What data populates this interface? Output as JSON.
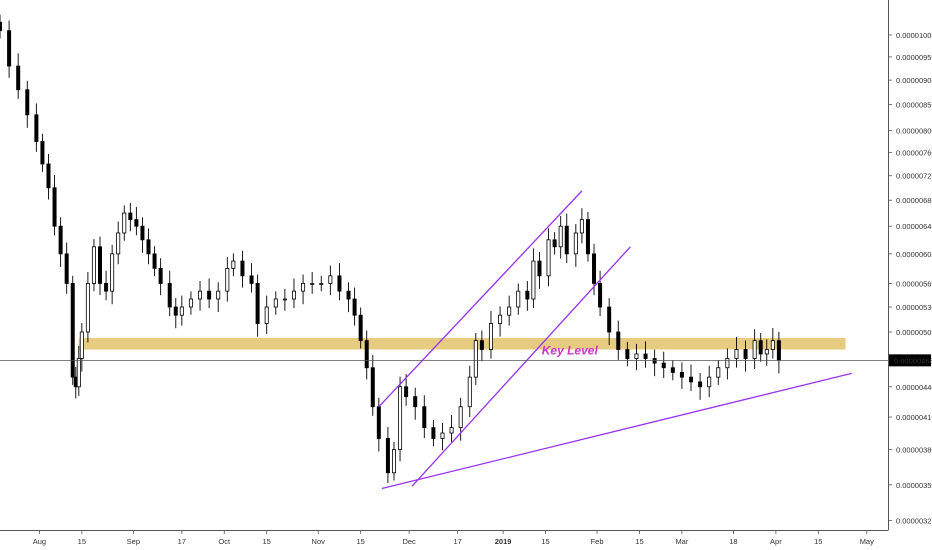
{
  "chart_data": {
    "type": "candlestick",
    "y_scale": "log",
    "ylim": [
      3.15e-06,
      1.085e-05
    ],
    "y_ticks": [
      "0.00001000",
      "0.00000950",
      "0.00000900",
      "0.00000850",
      "0.00000800",
      "0.00000760",
      "0.00000720",
      "0.00000680",
      "0.00000640",
      "0.00000600",
      "0.00000560",
      "0.00000530",
      "0.00000500",
      "0.00000440",
      "0.00000410",
      "0.00000380",
      "0.00000350",
      "0.00000322"
    ],
    "x_range": [
      "2018-07-19",
      "2019-05-08"
    ],
    "x_ticks": [
      {
        "label": "Aug",
        "date": "2018-08-01"
      },
      {
        "label": "15",
        "date": "2018-08-15"
      },
      {
        "label": "Sep",
        "date": "2018-09-01"
      },
      {
        "label": "17",
        "date": "2018-09-17"
      },
      {
        "label": "Oct",
        "date": "2018-10-01"
      },
      {
        "label": "15",
        "date": "2018-10-15"
      },
      {
        "label": "Nov",
        "date": "2018-11-01"
      },
      {
        "label": "15",
        "date": "2018-11-15"
      },
      {
        "label": "Dec",
        "date": "2018-12-01"
      },
      {
        "label": "17",
        "date": "2018-12-17"
      },
      {
        "label": "2019",
        "date": "2019-01-01",
        "bold": true
      },
      {
        "label": "15",
        "date": "2019-01-15"
      },
      {
        "label": "Feb",
        "date": "2019-02-01"
      },
      {
        "label": "15",
        "date": "2019-02-15"
      },
      {
        "label": "Mar",
        "date": "2019-03-01"
      },
      {
        "label": "18",
        "date": "2019-03-18"
      },
      {
        "label": "Apr",
        "date": "2019-04-01"
      },
      {
        "label": "15",
        "date": "2019-04-15"
      },
      {
        "label": "May",
        "date": "2019-05-01"
      }
    ],
    "current_price": {
      "label": "0.00000468",
      "value": 4.68e-06
    },
    "candles_daily_close": [
      [
        "2018-07-19",
        1.01e-05
      ],
      [
        "2018-07-22",
        9.3e-06
      ],
      [
        "2018-07-25",
        8.8e-06
      ],
      [
        "2018-07-28",
        8.3e-06
      ],
      [
        "2018-07-31",
        7.8e-06
      ],
      [
        "2018-08-02",
        7.4e-06
      ],
      [
        "2018-08-04",
        7e-06
      ],
      [
        "2018-08-06",
        6.4e-06
      ],
      [
        "2018-08-08",
        6e-06
      ],
      [
        "2018-08-10",
        5.6e-06
      ],
      [
        "2018-08-12",
        4.5e-06
      ],
      [
        "2018-08-13",
        4.4e-06
      ],
      [
        "2018-08-14",
        4.7e-06
      ],
      [
        "2018-08-15",
        5e-06
      ],
      [
        "2018-08-17",
        5.6e-06
      ],
      [
        "2018-08-19",
        6.1e-06
      ],
      [
        "2018-08-21",
        5.6e-06
      ],
      [
        "2018-08-23",
        5.5e-06
      ],
      [
        "2018-08-25",
        6e-06
      ],
      [
        "2018-08-27",
        6.3e-06
      ],
      [
        "2018-08-29",
        6.6e-06
      ],
      [
        "2018-08-31",
        6.5e-06
      ],
      [
        "2018-09-02",
        6.4e-06
      ],
      [
        "2018-09-04",
        6.2e-06
      ],
      [
        "2018-09-06",
        6e-06
      ],
      [
        "2018-09-08",
        5.8e-06
      ],
      [
        "2018-09-10",
        5.6e-06
      ],
      [
        "2018-09-13",
        5.3e-06
      ],
      [
        "2018-09-15",
        5.2e-06
      ],
      [
        "2018-09-17",
        5.3e-06
      ],
      [
        "2018-09-20",
        5.4e-06
      ],
      [
        "2018-09-23",
        5.5e-06
      ],
      [
        "2018-09-26",
        5.4e-06
      ],
      [
        "2018-09-29",
        5.5e-06
      ],
      [
        "2018-10-02",
        5.8e-06
      ],
      [
        "2018-10-04",
        5.9e-06
      ],
      [
        "2018-10-07",
        5.7e-06
      ],
      [
        "2018-10-10",
        5.6e-06
      ],
      [
        "2018-10-12",
        5.1e-06
      ],
      [
        "2018-10-15",
        5.3e-06
      ],
      [
        "2018-10-18",
        5.4e-06
      ],
      [
        "2018-10-21",
        5.4e-06
      ],
      [
        "2018-10-24",
        5.5e-06
      ],
      [
        "2018-10-27",
        5.6e-06
      ],
      [
        "2018-10-30",
        5.6e-06
      ],
      [
        "2018-11-02",
        5.6e-06
      ],
      [
        "2018-11-05",
        5.7e-06
      ],
      [
        "2018-11-08",
        5.5e-06
      ],
      [
        "2018-11-11",
        5.4e-06
      ],
      [
        "2018-11-13",
        5.2e-06
      ],
      [
        "2018-11-15",
        4.9e-06
      ],
      [
        "2018-11-17",
        4.6e-06
      ],
      [
        "2018-11-19",
        4.2e-06
      ],
      [
        "2018-11-21",
        3.9e-06
      ],
      [
        "2018-11-24",
        3.6e-06
      ],
      [
        "2018-11-26",
        3.8e-06
      ],
      [
        "2018-11-28",
        4.4e-06
      ],
      [
        "2018-11-30",
        4.3e-06
      ],
      [
        "2018-12-03",
        4.2e-06
      ],
      [
        "2018-12-06",
        4e-06
      ],
      [
        "2018-12-09",
        3.9e-06
      ],
      [
        "2018-12-12",
        3.95e-06
      ],
      [
        "2018-12-15",
        4e-06
      ],
      [
        "2018-12-18",
        4.2e-06
      ],
      [
        "2018-12-21",
        4.5e-06
      ],
      [
        "2018-12-23",
        4.9e-06
      ],
      [
        "2018-12-25",
        4.8e-06
      ],
      [
        "2018-12-28",
        5.1e-06
      ],
      [
        "2018-12-31",
        5.2e-06
      ],
      [
        "2019-01-03",
        5.3e-06
      ],
      [
        "2019-01-06",
        5.5e-06
      ],
      [
        "2019-01-09",
        5.4e-06
      ],
      [
        "2019-01-11",
        5.9e-06
      ],
      [
        "2019-01-13",
        5.7e-06
      ],
      [
        "2019-01-16",
        6.2e-06
      ],
      [
        "2019-01-18",
        6.1e-06
      ],
      [
        "2019-01-20",
        6.4e-06
      ],
      [
        "2019-01-22",
        6e-06
      ],
      [
        "2019-01-25",
        6.3e-06
      ],
      [
        "2019-01-27",
        6.5e-06
      ],
      [
        "2019-01-29",
        6e-06
      ],
      [
        "2019-01-31",
        5.6e-06
      ],
      [
        "2019-02-02",
        5.3e-06
      ],
      [
        "2019-02-05",
        5e-06
      ],
      [
        "2019-02-08",
        4.8e-06
      ],
      [
        "2019-02-11",
        4.7e-06
      ],
      [
        "2019-02-14",
        4.75e-06
      ],
      [
        "2019-02-17",
        4.7e-06
      ],
      [
        "2019-02-20",
        4.65e-06
      ],
      [
        "2019-02-23",
        4.6e-06
      ],
      [
        "2019-02-26",
        4.55e-06
      ],
      [
        "2019-03-01",
        4.5e-06
      ],
      [
        "2019-03-04",
        4.45e-06
      ],
      [
        "2019-03-07",
        4.4e-06
      ],
      [
        "2019-03-10",
        4.5e-06
      ],
      [
        "2019-03-13",
        4.6e-06
      ],
      [
        "2019-03-16",
        4.7e-06
      ],
      [
        "2019-03-19",
        4.8e-06
      ],
      [
        "2019-03-22",
        4.7e-06
      ],
      [
        "2019-03-25",
        4.9e-06
      ],
      [
        "2019-03-27",
        4.75e-06
      ],
      [
        "2019-03-29",
        4.8e-06
      ],
      [
        "2019-03-31",
        4.9e-06
      ],
      [
        "2019-04-02",
        4.68e-06
      ]
    ],
    "annotations": {
      "key_level": {
        "label": "Key Level",
        "zone": [
          4.8e-06,
          4.93e-06
        ],
        "from": "2018-08-14",
        "to": "2019-04-24",
        "color": "#d4a017",
        "text_color": "#cc33cc"
      },
      "trendlines": [
        {
          "name": "channel-upper",
          "from": [
            "2018-11-21",
            4.2e-06
          ],
          "to": [
            "2019-01-27",
            6.95e-06
          ],
          "color": "#9933ee"
        },
        {
          "name": "channel-lower",
          "from": [
            "2018-12-02",
            3.49e-06
          ],
          "to": [
            "2019-02-12",
            6.1e-06
          ],
          "color": "#9933ee"
        },
        {
          "name": "support",
          "from": [
            "2018-11-22",
            3.47e-06
          ],
          "to": [
            "2019-04-26",
            4.54e-06
          ],
          "color": "#9933ee"
        }
      ]
    }
  }
}
